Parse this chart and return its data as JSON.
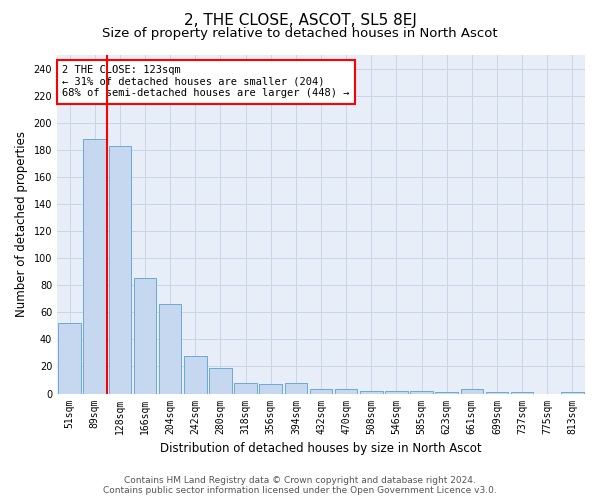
{
  "title": "2, THE CLOSE, ASCOT, SL5 8EJ",
  "subtitle": "Size of property relative to detached houses in North Ascot",
  "xlabel": "Distribution of detached houses by size in North Ascot",
  "ylabel": "Number of detached properties",
  "categories": [
    "51sqm",
    "89sqm",
    "128sqm",
    "166sqm",
    "204sqm",
    "242sqm",
    "280sqm",
    "318sqm",
    "356sqm",
    "394sqm",
    "432sqm",
    "470sqm",
    "508sqm",
    "546sqm",
    "585sqm",
    "623sqm",
    "661sqm",
    "699sqm",
    "737sqm",
    "775sqm",
    "813sqm"
  ],
  "values": [
    52,
    188,
    183,
    85,
    66,
    28,
    19,
    8,
    7,
    8,
    3,
    3,
    2,
    2,
    2,
    1,
    3,
    1,
    1,
    0,
    1
  ],
  "bar_color": "#c5d8f0",
  "bar_edge_color": "#6aaad4",
  "grid_color": "#c8d4e8",
  "background_color": "#e8eef8",
  "annotation_box_text": "2 THE CLOSE: 123sqm\n← 31% of detached houses are smaller (204)\n68% of semi-detached houses are larger (448) →",
  "annotation_box_color": "white",
  "annotation_box_edge_color": "red",
  "vline_color": "red",
  "vline_x": 1.5,
  "ylim": [
    0,
    250
  ],
  "yticks": [
    0,
    20,
    40,
    60,
    80,
    100,
    120,
    140,
    160,
    180,
    200,
    220,
    240
  ],
  "footer_line1": "Contains HM Land Registry data © Crown copyright and database right 2024.",
  "footer_line2": "Contains public sector information licensed under the Open Government Licence v3.0.",
  "title_fontsize": 11,
  "subtitle_fontsize": 9.5,
  "axis_label_fontsize": 8.5,
  "tick_fontsize": 7,
  "annotation_fontsize": 7.5,
  "footer_fontsize": 6.5
}
